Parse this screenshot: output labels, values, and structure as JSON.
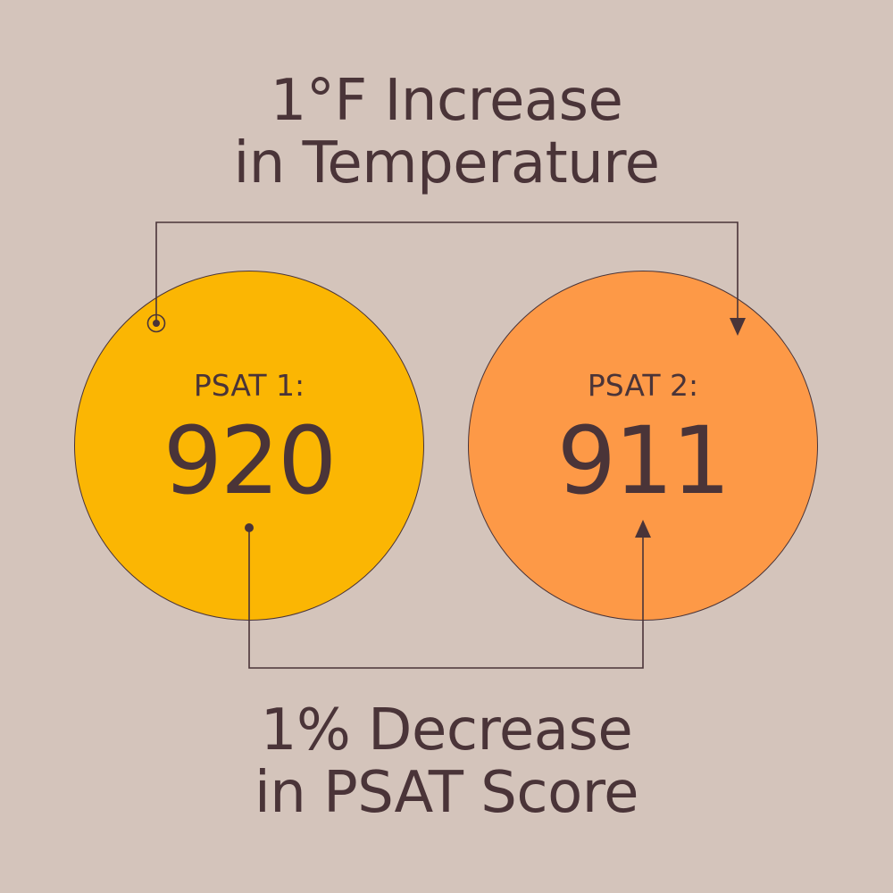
{
  "title": {
    "line1": "1°F Increase",
    "line2": "in Temperature"
  },
  "footer": {
    "line1": "1% Decrease",
    "line2": "in PSAT Score"
  },
  "psat1": {
    "label": "PSAT 1:",
    "value": "920",
    "color": "#fbb603"
  },
  "psat2": {
    "label": "PSAT 2:",
    "value": "911",
    "color": "#fd9947"
  },
  "colors": {
    "background": "#d4c4bb",
    "text": "#4a3438",
    "connector": "#4a3438"
  }
}
